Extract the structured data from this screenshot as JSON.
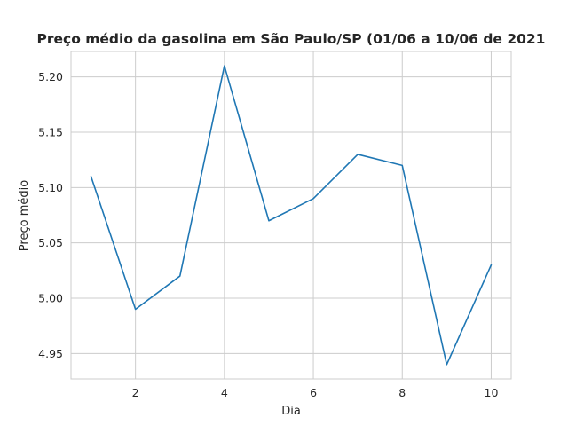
{
  "chart_data": {
    "type": "line",
    "title": "Preço médio da gasolina em São Paulo/SP (01/06 a 10/06 de 2021",
    "xlabel": "Dia",
    "ylabel": "Preço médio",
    "xlim": [
      0.55,
      10.45
    ],
    "ylim": [
      4.927,
      5.223
    ],
    "xticks": [
      2,
      4,
      6,
      8,
      10
    ],
    "xtick_labels": [
      "2",
      "4",
      "6",
      "8",
      "10"
    ],
    "yticks": [
      4.95,
      5.0,
      5.05,
      5.1,
      5.15,
      5.2
    ],
    "ytick_labels": [
      "4.95",
      "5.00",
      "5.05",
      "5.10",
      "5.15",
      "5.20"
    ],
    "grid": true,
    "legend": "none",
    "series": [
      {
        "color": "#1f77b4",
        "x": [
          1,
          2,
          3,
          4,
          5,
          6,
          7,
          8,
          9,
          10
        ],
        "y": [
          5.11,
          4.99,
          5.02,
          5.21,
          5.07,
          5.09,
          5.13,
          5.12,
          4.94,
          5.03
        ]
      }
    ]
  }
}
